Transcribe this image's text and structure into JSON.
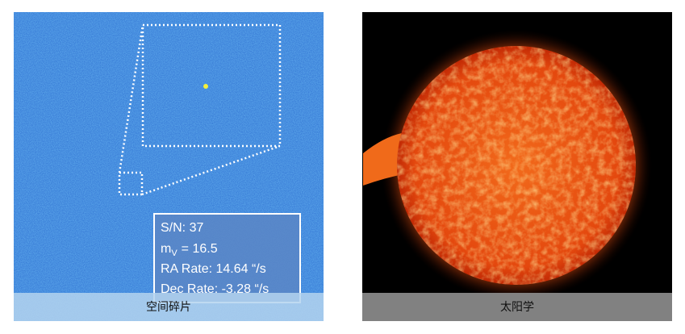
{
  "panels": [
    {
      "caption": "空间碎片",
      "info": {
        "sn": "S/N: 37",
        "mag_symbol": "m",
        "mag_subscript": "V",
        "mag_value": "= 16.5",
        "ra_rate": "RA Rate: 14.64 “/s",
        "dec_rate": "Dec Rate: -3.28 “/s"
      }
    },
    {
      "caption": "太阳学"
    }
  ]
}
